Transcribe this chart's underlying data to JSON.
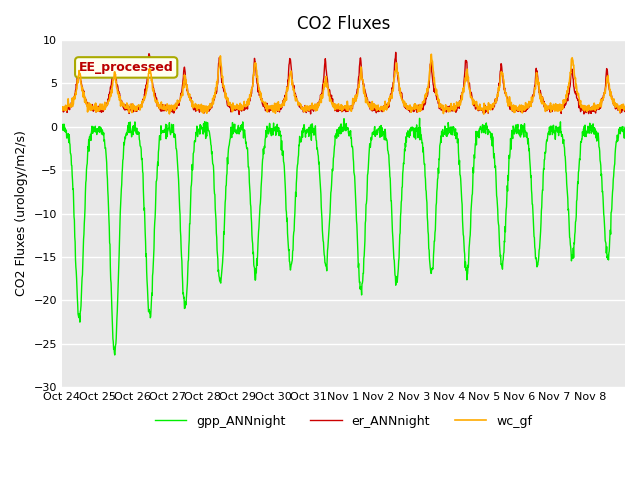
{
  "title": "CO2 Fluxes",
  "ylabel": "CO2 Fluxes (urology/m2/s)",
  "ylim": [
    -30,
    10
  ],
  "yticks": [
    -30,
    -25,
    -20,
    -15,
    -10,
    -5,
    0,
    5,
    10
  ],
  "xtick_labels": [
    "Oct 24",
    "Oct 25",
    "Oct 26",
    "Oct 27",
    "Oct 28",
    "Oct 29",
    "Oct 30",
    "Oct 31",
    "Nov 1",
    "Nov 2",
    "Nov 3",
    "Nov 4",
    "Nov 5",
    "Nov 6",
    "Nov 7",
    "Nov 8"
  ],
  "line_colors": {
    "gpp_ANNnight": "#00ee00",
    "er_ANNnight": "#cc0000",
    "wc_gf": "#ffaa00"
  },
  "line_widths": {
    "gpp_ANNnight": 1.0,
    "er_ANNnight": 1.0,
    "wc_gf": 1.2
  },
  "legend_label": "EE_processed",
  "legend_box_facecolor": "#fffff0",
  "legend_box_edgecolor": "#aaaa00",
  "bg_color": "#e8e8e8",
  "fig_bg_color": "#ffffff",
  "title_fontsize": 12,
  "axis_fontsize": 9,
  "tick_fontsize": 8,
  "n_points_per_day": 96,
  "n_days": 16,
  "random_seed": 42
}
